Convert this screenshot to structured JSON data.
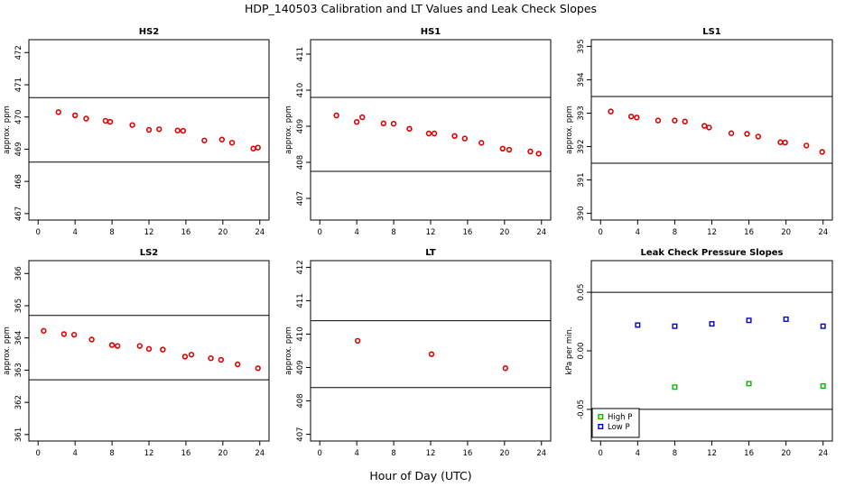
{
  "figure": {
    "title": "HDP_140503  Calibration and LT Values and Leak Check Slopes",
    "xlabel": "Hour of Day (UTC)"
  },
  "chart_data": [
    {
      "type": "scatter",
      "title": "HS2",
      "ylabel": "approx. ppm",
      "xlim": [
        -1,
        25
      ],
      "ylim": [
        466.8,
        472.4
      ],
      "xticks": [
        0,
        4,
        8,
        12,
        16,
        20,
        24
      ],
      "yticks": [
        467,
        468,
        469,
        470,
        471,
        472
      ],
      "hlines": [
        470.6,
        468.6
      ],
      "series": [
        {
          "marker": "circle",
          "color": "#dd0000",
          "x": [
            2.2,
            4.0,
            5.2,
            7.3,
            7.8,
            10.2,
            12.0,
            13.1,
            15.1,
            15.7,
            18.0,
            19.9,
            21.0,
            23.3,
            23.8
          ],
          "y": [
            470.15,
            470.05,
            469.95,
            469.88,
            469.85,
            469.75,
            469.6,
            469.62,
            469.58,
            469.57,
            469.27,
            469.3,
            469.2,
            469.02,
            469.05
          ]
        }
      ]
    },
    {
      "type": "scatter",
      "title": "HS1",
      "ylabel": "approx. ppm",
      "xlim": [
        -1,
        25
      ],
      "ylim": [
        406.4,
        411.4
      ],
      "xticks": [
        0,
        4,
        8,
        12,
        16,
        20,
        24
      ],
      "yticks": [
        407,
        408,
        409,
        410,
        411
      ],
      "hlines": [
        409.8,
        407.75
      ],
      "series": [
        {
          "marker": "circle",
          "color": "#dd0000",
          "x": [
            1.8,
            4.0,
            4.6,
            6.9,
            8.0,
            9.7,
            11.8,
            12.4,
            14.6,
            15.7,
            17.5,
            19.8,
            20.5,
            22.8,
            23.7
          ],
          "y": [
            409.3,
            409.12,
            409.25,
            409.08,
            409.07,
            408.93,
            408.8,
            408.8,
            408.73,
            408.66,
            408.54,
            408.38,
            408.35,
            408.3,
            408.24
          ]
        }
      ]
    },
    {
      "type": "scatter",
      "title": "LS1",
      "ylabel": "approx. ppm",
      "xlim": [
        -1,
        25
      ],
      "ylim": [
        389.8,
        395.2
      ],
      "xticks": [
        0,
        4,
        8,
        12,
        16,
        20,
        24
      ],
      "yticks": [
        390,
        391,
        392,
        393,
        394,
        395
      ],
      "hlines": [
        393.5,
        391.5
      ],
      "series": [
        {
          "marker": "circle",
          "color": "#dd0000",
          "x": [
            1.1,
            3.3,
            3.9,
            6.2,
            8.0,
            9.1,
            11.2,
            11.7,
            14.1,
            15.8,
            17.0,
            19.4,
            19.9,
            22.2,
            23.9
          ],
          "y": [
            393.05,
            392.9,
            392.87,
            392.78,
            392.78,
            392.75,
            392.62,
            392.57,
            392.4,
            392.38,
            392.3,
            392.13,
            392.12,
            392.03,
            391.84
          ]
        }
      ]
    },
    {
      "type": "scatter",
      "title": "LS2",
      "ylabel": "approx. ppm",
      "xlim": [
        -1,
        25
      ],
      "ylim": [
        360.8,
        366.4
      ],
      "xticks": [
        0,
        4,
        8,
        12,
        16,
        20,
        24
      ],
      "yticks": [
        361,
        362,
        363,
        364,
        365,
        366
      ],
      "hlines": [
        364.7,
        362.7
      ],
      "series": [
        {
          "marker": "circle",
          "color": "#dd0000",
          "x": [
            0.6,
            2.8,
            3.9,
            5.8,
            8.0,
            8.6,
            11.0,
            12.0,
            13.5,
            15.9,
            16.6,
            18.7,
            19.8,
            21.6,
            23.8
          ],
          "y": [
            364.22,
            364.12,
            364.1,
            363.95,
            363.78,
            363.75,
            363.75,
            363.66,
            363.64,
            363.42,
            363.48,
            363.37,
            363.32,
            363.18,
            363.06
          ]
        }
      ]
    },
    {
      "type": "scatter",
      "title": "LT",
      "ylabel": "approx. ppm",
      "xlim": [
        -1,
        25
      ],
      "ylim": [
        406.8,
        412.2
      ],
      "xticks": [
        0,
        4,
        8,
        12,
        16,
        20,
        24
      ],
      "yticks": [
        407,
        408,
        409,
        410,
        411,
        412
      ],
      "hlines": [
        410.4,
        408.4
      ],
      "series": [
        {
          "marker": "circle",
          "color": "#dd0000",
          "x": [
            4.1,
            12.1,
            20.1
          ],
          "y": [
            409.8,
            409.4,
            408.98
          ]
        }
      ]
    },
    {
      "type": "scatter",
      "title": "Leak Check Pressure Slopes",
      "ylabel": "kPa per min.",
      "xlim": [
        -1,
        25
      ],
      "ylim": [
        -0.077,
        0.077
      ],
      "xticks": [
        0,
        4,
        8,
        12,
        16,
        20,
        24
      ],
      "yticks": [
        -0.05,
        0.0,
        0.05
      ],
      "ytick_labels": [
        "-0.05",
        "0.00",
        "0.05"
      ],
      "hlines": [
        0.05,
        -0.05
      ],
      "legend": "bottom-left",
      "series": [
        {
          "name": "High P",
          "marker": "square",
          "color": "#00bb00",
          "x": [
            8.0,
            16.0,
            24.0
          ],
          "y": [
            -0.031,
            -0.028,
            -0.03
          ]
        },
        {
          "name": "Low P",
          "marker": "square",
          "color": "#0000cc",
          "x": [
            4.0,
            8.0,
            12.0,
            16.0,
            20.0,
            24.0
          ],
          "y": [
            0.022,
            0.021,
            0.023,
            0.026,
            0.027,
            0.021
          ]
        }
      ]
    }
  ]
}
